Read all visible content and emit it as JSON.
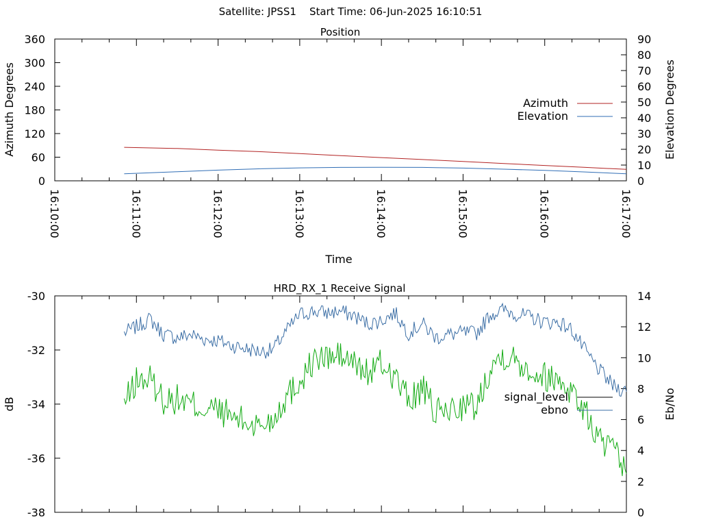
{
  "header": {
    "title": "Satellite: JPSS1    Start Time: 06-Jun-2025 16:10:51"
  },
  "colors": {
    "azimuth": "#b22222",
    "elevation": "#2f6db5",
    "signal_level": "#000000",
    "ebno_green": "#11aa11",
    "ebno_blue": "#3b6ea5"
  },
  "chart_data": [
    {
      "type": "line",
      "title": "Position",
      "xlabel": "Time",
      "ylabel": "Azimuth Degrees",
      "y2label": "Elevation Degrees",
      "xlim": [
        "16:10:00",
        "16:17:00"
      ],
      "ylim": [
        0,
        360
      ],
      "y2lim": [
        0,
        90
      ],
      "x_ticks": [
        "16:10:00",
        "16:11:00",
        "16:12:00",
        "16:13:00",
        "16:14:00",
        "16:15:00",
        "16:16:00",
        "16:17:00"
      ],
      "y_ticks": [
        "0",
        "60",
        "120",
        "180",
        "240",
        "300",
        "360"
      ],
      "y2_ticks": [
        "0",
        "10",
        "20",
        "30",
        "40",
        "50",
        "60",
        "70",
        "80",
        "90"
      ],
      "legend_position": "right",
      "grid": false,
      "series": [
        {
          "name": "Azimuth",
          "axis": "y",
          "x": [
            "16:10:51",
            "16:11:30",
            "16:12:00",
            "16:12:30",
            "16:13:00",
            "16:13:30",
            "16:14:00",
            "16:14:30",
            "16:15:00",
            "16:15:30",
            "16:16:00",
            "16:16:30",
            "16:17:00"
          ],
          "values": [
            85,
            82,
            78,
            74,
            69,
            64,
            59,
            54,
            49,
            44,
            39,
            34,
            29
          ]
        },
        {
          "name": "Elevation",
          "axis": "y2",
          "x": [
            "16:10:51",
            "16:11:30",
            "16:12:00",
            "16:12:30",
            "16:13:00",
            "16:13:30",
            "16:14:00",
            "16:14:30",
            "16:15:00",
            "16:15:30",
            "16:16:00",
            "16:16:30",
            "16:17:00"
          ],
          "values": [
            4.5,
            5.8,
            6.8,
            7.6,
            8.2,
            8.5,
            8.6,
            8.5,
            8.1,
            7.4,
            6.6,
            5.6,
            4.5
          ]
        }
      ]
    },
    {
      "type": "line",
      "title": "HRD_RX_1 Receive Signal",
      "ylabel": "dB",
      "y2label": "Eb/No",
      "xlim": [
        "16:10:00",
        "16:17:00"
      ],
      "ylim": [
        -38,
        -30
      ],
      "y2lim": [
        0,
        14
      ],
      "y_ticks": [
        "-38",
        "-36",
        "-34",
        "-32",
        "-30"
      ],
      "y2_ticks": [
        "0",
        "2",
        "4",
        "6",
        "8",
        "10",
        "12",
        "14"
      ],
      "legend_position": "right",
      "grid": false,
      "series": [
        {
          "name": "signal_level",
          "axis": "y",
          "x": [],
          "values": []
        },
        {
          "name": "ebno",
          "axis": "y2",
          "x": [
            "16:10:51",
            "16:11:00",
            "16:11:10",
            "16:11:20",
            "16:11:30",
            "16:11:40",
            "16:11:50",
            "16:12:00",
            "16:12:10",
            "16:12:20",
            "16:12:30",
            "16:12:40",
            "16:12:50",
            "16:13:00",
            "16:13:10",
            "16:13:20",
            "16:13:30",
            "16:13:40",
            "16:13:50",
            "16:14:00",
            "16:14:10",
            "16:14:20",
            "16:14:30",
            "16:14:40",
            "16:14:50",
            "16:15:00",
            "16:15:10",
            "16:15:20",
            "16:15:30",
            "16:15:40",
            "16:15:50",
            "16:16:00",
            "16:16:10",
            "16:16:20",
            "16:16:30",
            "16:16:40",
            "16:16:50",
            "16:17:00"
          ],
          "values": [
            11.6,
            12.0,
            12.5,
            11.5,
            11.3,
            11.5,
            11.2,
            11.1,
            10.8,
            10.6,
            10.4,
            10.5,
            11.7,
            12.8,
            13.0,
            12.9,
            13.0,
            12.7,
            12.2,
            12.4,
            12.9,
            11.6,
            12.2,
            11.3,
            11.5,
            11.6,
            11.6,
            12.8,
            13.1,
            12.8,
            12.6,
            12.3,
            12.3,
            11.8,
            10.4,
            9.2,
            8.2,
            7.8
          ]
        }
      ]
    },
    {
      "type": "line",
      "title": "",
      "y2label": "",
      "y2lim": [
        0,
        14
      ],
      "legend_position": "none",
      "series": [
        {
          "x": [
            "16:10:51",
            "16:11:00",
            "16:11:10",
            "16:11:20",
            "16:11:30",
            "16:11:40",
            "16:11:50",
            "16:12:00",
            "16:12:10",
            "16:12:20",
            "16:12:30",
            "16:12:40",
            "16:12:50",
            "16:13:00",
            "16:13:10",
            "16:13:20",
            "16:13:30",
            "16:13:40",
            "16:13:50",
            "16:14:00",
            "16:14:10",
            "16:14:20",
            "16:14:30",
            "16:14:40",
            "16:14:50",
            "16:15:00",
            "16:15:10",
            "16:15:20",
            "16:15:30",
            "16:15:40",
            "16:15:50",
            "16:16:00",
            "16:16:10",
            "16:16:20",
            "16:16:30",
            "16:16:40",
            "16:16:50",
            "16:17:00"
          ],
          "values": [
            7.0,
            8.5,
            8.6,
            7.3,
            7.3,
            7.0,
            6.7,
            6.6,
            6.2,
            5.8,
            5.6,
            6.0,
            7.5,
            8.5,
            9.8,
            10.0,
            10.1,
            9.6,
            9.0,
            9.6,
            8.8,
            7.2,
            8.0,
            6.4,
            6.6,
            6.9,
            6.8,
            9.5,
            10.2,
            9.8,
            9.2,
            8.8,
            8.6,
            7.9,
            6.4,
            4.7,
            4.0,
            2.5
          ]
        }
      ]
    }
  ]
}
